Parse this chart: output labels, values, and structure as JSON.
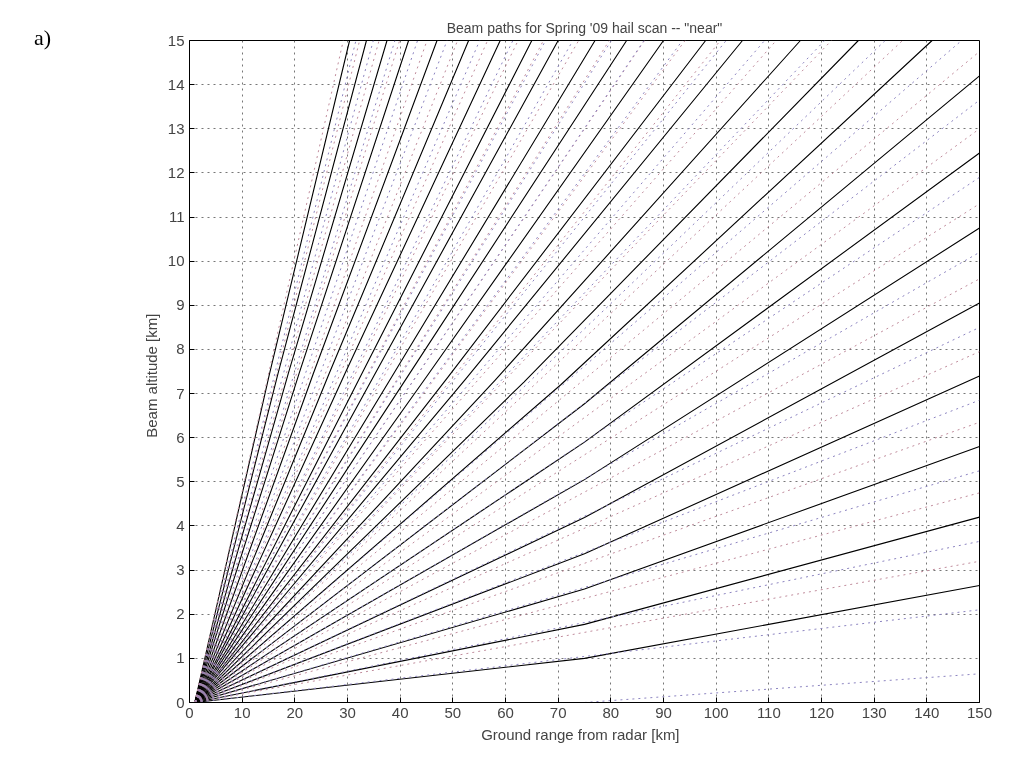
{
  "chart_data": {
    "type": "line",
    "title": "Beam paths for Spring '09 hail scan -- \"near\"",
    "xlabel": "Ground range from radar   [km]",
    "ylabel": "Beam altitude   [km]",
    "annotations": [
      "a)"
    ],
    "xlim": [
      0,
      150
    ],
    "ylim": [
      0,
      15
    ],
    "xticks": [
      0,
      10,
      20,
      30,
      40,
      50,
      60,
      70,
      80,
      90,
      100,
      110,
      120,
      130,
      140,
      150
    ],
    "yticks": [
      0,
      1,
      2,
      3,
      4,
      5,
      6,
      7,
      8,
      9,
      10,
      11,
      12,
      13,
      14,
      15
    ],
    "grid": true,
    "marker": "none",
    "series": [
      {
        "color": "#000000",
        "line_style": "solid",
        "x": [
          1,
          75,
          150
        ],
        "values": [
          0,
          1.0,
          2.65
        ]
      },
      {
        "color": "#000000",
        "line_style": "solid",
        "x": [
          1,
          75,
          150
        ],
        "values": [
          0,
          1.77,
          4.2
        ]
      },
      {
        "color": "#000000",
        "line_style": "solid",
        "x": [
          1,
          75,
          150
        ],
        "values": [
          0,
          2.57,
          5.8
        ]
      },
      {
        "color": "#000000",
        "line_style": "solid",
        "x": [
          1,
          75,
          150
        ],
        "values": [
          0,
          3.37,
          7.4
        ]
      },
      {
        "color": "#000000",
        "line_style": "solid",
        "x": [
          1,
          75,
          150
        ],
        "values": [
          0,
          4.19,
          9.05
        ]
      },
      {
        "color": "#000000",
        "line_style": "solid",
        "x": [
          1,
          75,
          150
        ],
        "values": [
          0,
          5.05,
          10.75
        ]
      },
      {
        "color": "#000000",
        "line_style": "solid",
        "x": [
          1,
          75,
          150
        ],
        "values": [
          0,
          5.9,
          12.45
        ]
      },
      {
        "color": "#000000",
        "line_style": "solid",
        "x": [
          1,
          75,
          150
        ],
        "values": [
          0,
          6.77,
          14.2
        ]
      },
      {
        "color": "#000000",
        "line_style": "solid",
        "x": [
          1,
          70.5,
          141
        ],
        "values": [
          0,
          7.2,
          15
        ]
      },
      {
        "color": "#000000",
        "line_style": "solid",
        "x": [
          1,
          63.5,
          127
        ],
        "values": [
          0,
          7.26,
          15
        ]
      },
      {
        "color": "#000000",
        "line_style": "solid",
        "x": [
          1,
          58,
          116
        ],
        "values": [
          0,
          7.3,
          15
        ]
      },
      {
        "color": "#000000",
        "line_style": "solid",
        "x": [
          1,
          52.5,
          105
        ],
        "values": [
          0,
          7.34,
          15
        ]
      },
      {
        "color": "#000000",
        "line_style": "solid",
        "x": [
          1,
          49,
          98
        ],
        "values": [
          0,
          7.36,
          15
        ]
      },
      {
        "color": "#000000",
        "line_style": "solid",
        "x": [
          1,
          45,
          90
        ],
        "values": [
          0,
          7.38,
          15
        ]
      },
      {
        "color": "#000000",
        "line_style": "solid",
        "x": [
          1,
          41.5,
          83
        ],
        "values": [
          0,
          7.4,
          15
        ]
      },
      {
        "color": "#000000",
        "line_style": "solid",
        "x": [
          1,
          38.5,
          77
        ],
        "values": [
          0,
          7.4,
          15
        ]
      },
      {
        "color": "#000000",
        "line_style": "solid",
        "x": [
          1,
          35,
          70
        ],
        "values": [
          0,
          7.4,
          15
        ]
      },
      {
        "color": "#000000",
        "line_style": "solid",
        "x": [
          1,
          32.5,
          65
        ],
        "values": [
          0,
          7.4,
          15
        ]
      },
      {
        "color": "#000000",
        "line_style": "solid",
        "x": [
          1,
          29.5,
          59
        ],
        "values": [
          0,
          7.45,
          15
        ]
      },
      {
        "color": "#000000",
        "line_style": "solid",
        "x": [
          1,
          26.5,
          53
        ],
        "values": [
          0,
          7.45,
          15
        ]
      },
      {
        "color": "#000000",
        "line_style": "solid",
        "x": [
          1,
          23.5,
          47
        ],
        "values": [
          0,
          7.45,
          15
        ]
      },
      {
        "color": "#000000",
        "line_style": "solid",
        "x": [
          1,
          20.8,
          41.6
        ],
        "values": [
          0,
          7.45,
          15
        ]
      },
      {
        "color": "#000000",
        "line_style": "solid",
        "x": [
          1,
          18.75,
          37.5
        ],
        "values": [
          0,
          7.45,
          15
        ]
      },
      {
        "color": "#000000",
        "line_style": "solid",
        "x": [
          1,
          16.8,
          33.6
        ],
        "values": [
          0,
          7.45,
          15
        ]
      },
      {
        "color": "#000000",
        "line_style": "solid",
        "x": [
          1,
          15.2,
          30.4
        ],
        "values": [
          0,
          7.45,
          15
        ]
      },
      {
        "color": "#8c84c0",
        "line_style": "dotted",
        "x": [
          75,
          150
        ],
        "values": [
          0,
          0.65
        ]
      },
      {
        "color": "#8c84c0",
        "line_style": "dotted",
        "x": [
          1,
          150
        ],
        "values": [
          0,
          2.1
        ]
      },
      {
        "color": "#c08c9c",
        "line_style": "dotted",
        "x": [
          1,
          150
        ],
        "values": [
          0,
          3.2
        ]
      },
      {
        "color": "#8c84c0",
        "line_style": "dotted",
        "x": [
          1,
          150
        ],
        "values": [
          0,
          3.65
        ]
      },
      {
        "color": "#c08c9c",
        "line_style": "dotted",
        "x": [
          1,
          150
        ],
        "values": [
          0,
          4.75
        ]
      },
      {
        "color": "#8c84c0",
        "line_style": "dotted",
        "x": [
          1,
          150
        ],
        "values": [
          0,
          5.25
        ]
      },
      {
        "color": "#c08c9c",
        "line_style": "dotted",
        "x": [
          1,
          150
        ],
        "values": [
          0,
          6.35
        ]
      },
      {
        "color": "#8c84c0",
        "line_style": "dotted",
        "x": [
          1,
          150
        ],
        "values": [
          0,
          6.85
        ]
      },
      {
        "color": "#c08c9c",
        "line_style": "dotted",
        "x": [
          1,
          150
        ],
        "values": [
          0,
          7.95
        ]
      },
      {
        "color": "#8c84c0",
        "line_style": "dotted",
        "x": [
          1,
          150
        ],
        "values": [
          0,
          8.5
        ]
      },
      {
        "color": "#c08c9c",
        "line_style": "dotted",
        "x": [
          1,
          150
        ],
        "values": [
          0,
          9.6
        ]
      },
      {
        "color": "#8c84c0",
        "line_style": "dotted",
        "x": [
          1,
          150
        ],
        "values": [
          0,
          10.2
        ]
      },
      {
        "color": "#c08c9c",
        "line_style": "dotted",
        "x": [
          1,
          150
        ],
        "values": [
          0,
          11.3
        ]
      },
      {
        "color": "#8c84c0",
        "line_style": "dotted",
        "x": [
          1,
          150
        ],
        "values": [
          0,
          11.9
        ]
      },
      {
        "color": "#c08c9c",
        "line_style": "dotted",
        "x": [
          1,
          150
        ],
        "values": [
          0,
          13.0
        ]
      },
      {
        "color": "#8c84c0",
        "line_style": "dotted",
        "x": [
          1,
          150
        ],
        "values": [
          0,
          13.65
        ]
      },
      {
        "color": "#c08c9c",
        "line_style": "dotted",
        "x": [
          1,
          150
        ],
        "values": [
          0,
          14.75
        ]
      },
      {
        "color": "#8c84c0",
        "line_style": "dotted",
        "x": [
          1,
          146.6
        ],
        "values": [
          0,
          15
        ]
      },
      {
        "color": "#c08c9c",
        "line_style": "dotted",
        "x": [
          1,
          135.4
        ],
        "values": [
          0,
          15
        ]
      },
      {
        "color": "#8c84c0",
        "line_style": "dotted",
        "x": [
          1,
          132.1
        ],
        "values": [
          0,
          15
        ]
      },
      {
        "color": "#c08c9c",
        "line_style": "dotted",
        "x": [
          1,
          121.9
        ],
        "values": [
          0,
          15
        ]
      },
      {
        "color": "#8c84c0",
        "line_style": "dotted",
        "x": [
          1,
          120.6
        ],
        "values": [
          0,
          15
        ]
      },
      {
        "color": "#c08c9c",
        "line_style": "dotted",
        "x": [
          1,
          111.4
        ],
        "values": [
          0,
          15
        ]
      },
      {
        "color": "#8c84c0",
        "line_style": "dotted",
        "x": [
          1,
          109.2
        ],
        "values": [
          0,
          15
        ]
      },
      {
        "color": "#c08c9c",
        "line_style": "dotted",
        "x": [
          1,
          100.8
        ],
        "values": [
          0,
          15
        ]
      },
      {
        "color": "#8c84c0",
        "line_style": "dotted",
        "x": [
          1,
          101.9
        ],
        "values": [
          0,
          15
        ]
      },
      {
        "color": "#c08c9c",
        "line_style": "dotted",
        "x": [
          1,
          94.1
        ],
        "values": [
          0,
          15
        ]
      },
      {
        "color": "#8c84c0",
        "line_style": "dotted",
        "x": [
          1,
          93.6
        ],
        "values": [
          0,
          15
        ]
      },
      {
        "color": "#c08c9c",
        "line_style": "dotted",
        "x": [
          1,
          86.4
        ],
        "values": [
          0,
          15
        ]
      },
      {
        "color": "#8c84c0",
        "line_style": "dotted",
        "x": [
          1,
          86.3
        ],
        "values": [
          0,
          15
        ]
      },
      {
        "color": "#c08c9c",
        "line_style": "dotted",
        "x": [
          1,
          79.7
        ],
        "values": [
          0,
          15
        ]
      },
      {
        "color": "#8c84c0",
        "line_style": "dotted",
        "x": [
          1,
          80.1
        ],
        "values": [
          0,
          15
        ]
      },
      {
        "color": "#c08c9c",
        "line_style": "dotted",
        "x": [
          1,
          73.9
        ],
        "values": [
          0,
          15
        ]
      },
      {
        "color": "#8c84c0",
        "line_style": "dotted",
        "x": [
          1,
          72.8
        ],
        "values": [
          0,
          15
        ]
      },
      {
        "color": "#c08c9c",
        "line_style": "dotted",
        "x": [
          1,
          67.2
        ],
        "values": [
          0,
          15
        ]
      },
      {
        "color": "#8c84c0",
        "line_style": "dotted",
        "x": [
          1,
          67.6
        ],
        "values": [
          0,
          15
        ]
      },
      {
        "color": "#c08c9c",
        "line_style": "dotted",
        "x": [
          1,
          62.4
        ],
        "values": [
          0,
          15
        ]
      },
      {
        "color": "#8c84c0",
        "line_style": "dotted",
        "x": [
          1,
          61.4
        ],
        "values": [
          0,
          15
        ]
      },
      {
        "color": "#c08c9c",
        "line_style": "dotted",
        "x": [
          1,
          56.6
        ],
        "values": [
          0,
          15
        ]
      },
      {
        "color": "#8c84c0",
        "line_style": "dotted",
        "x": [
          1,
          55.1
        ],
        "values": [
          0,
          15
        ]
      },
      {
        "color": "#c08c9c",
        "line_style": "dotted",
        "x": [
          1,
          50.9
        ],
        "values": [
          0,
          15
        ]
      },
      {
        "color": "#8c84c0",
        "line_style": "dotted",
        "x": [
          1,
          48.9
        ],
        "values": [
          0,
          15
        ]
      },
      {
        "color": "#c08c9c",
        "line_style": "dotted",
        "x": [
          1,
          45.1
        ],
        "values": [
          0,
          15
        ]
      },
      {
        "color": "#8c84c0",
        "line_style": "dotted",
        "x": [
          1,
          43.3
        ],
        "values": [
          0,
          15
        ]
      },
      {
        "color": "#c08c9c",
        "line_style": "dotted",
        "x": [
          1,
          39.9
        ],
        "values": [
          0,
          15
        ]
      },
      {
        "color": "#8c84c0",
        "line_style": "dotted",
        "x": [
          1,
          39
        ],
        "values": [
          0,
          15
        ]
      },
      {
        "color": "#c08c9c",
        "line_style": "dotted",
        "x": [
          1,
          36
        ],
        "values": [
          0,
          15
        ]
      },
      {
        "color": "#8c84c0",
        "line_style": "dotted",
        "x": [
          1,
          34.9
        ],
        "values": [
          0,
          15
        ]
      },
      {
        "color": "#c08c9c",
        "line_style": "dotted",
        "x": [
          1,
          32.3
        ],
        "values": [
          0,
          15
        ]
      },
      {
        "color": "#8c84c0",
        "line_style": "dotted",
        "x": [
          1,
          31.6
        ],
        "values": [
          0,
          15
        ]
      },
      {
        "color": "#c08c9c",
        "line_style": "dotted",
        "x": [
          1,
          29.2
        ],
        "values": [
          0,
          15
        ]
      }
    ]
  }
}
